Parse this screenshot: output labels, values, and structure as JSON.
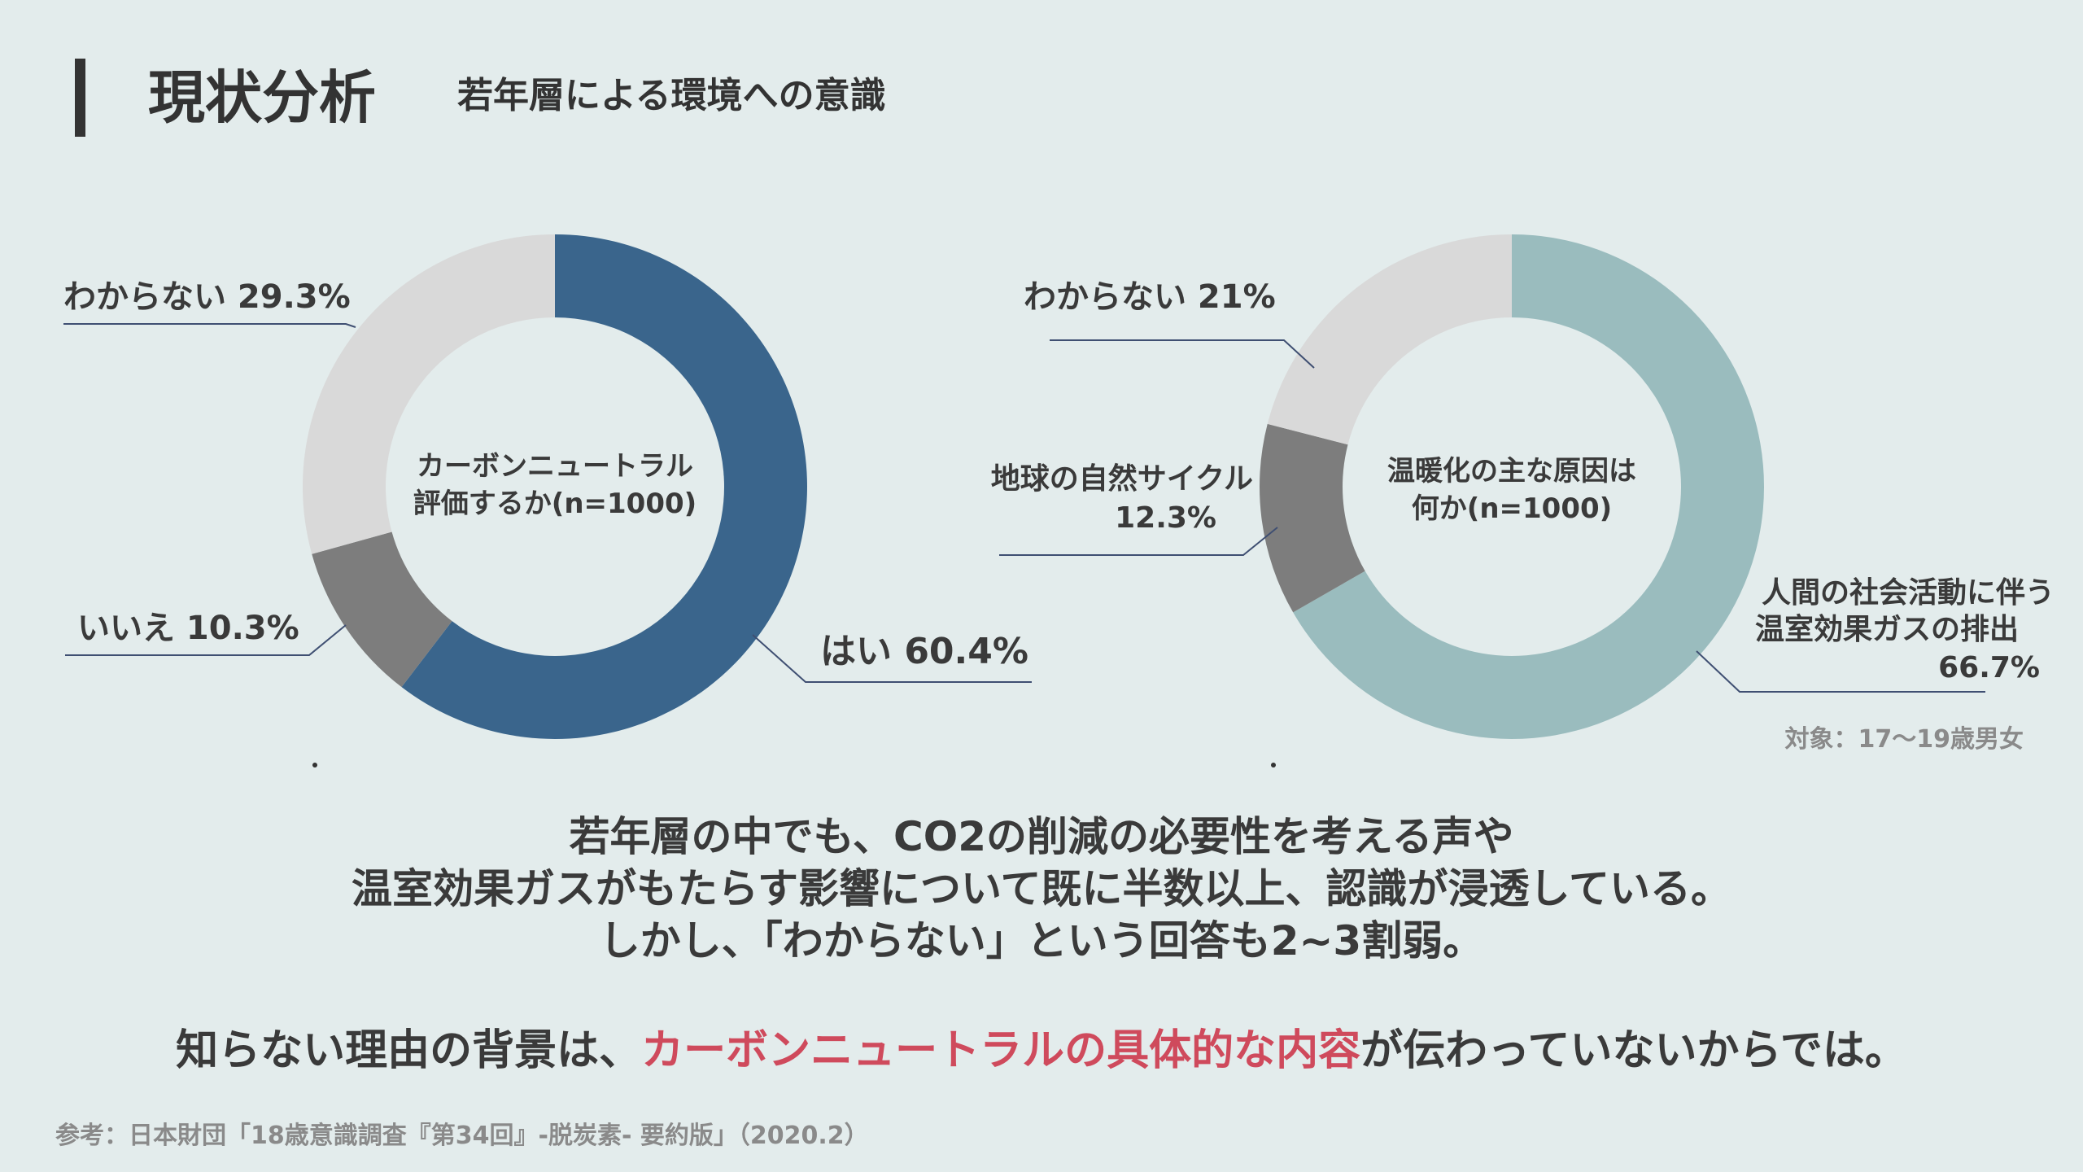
{
  "header": {
    "title": "現状分析",
    "subtitle": "若年層による環境への意識"
  },
  "chart_data": [
    {
      "type": "pie",
      "center_label": [
        "カーボンニュートラル",
        "評価するか(n=1000)"
      ],
      "slices": [
        {
          "label": "はい",
          "value": 60.4,
          "text": "はい 60.4%",
          "color": "#3a658c"
        },
        {
          "label": "いいえ",
          "value": 10.3,
          "text": "いいえ 10.3%",
          "color": "#7d7d7d"
        },
        {
          "label": "わからない",
          "value": 29.3,
          "text": "わからない 29.3%",
          "color": "#d9d9d9"
        }
      ]
    },
    {
      "type": "pie",
      "center_label": [
        "温暖化の主な原因は",
        "何か(n=1000)"
      ],
      "slices": [
        {
          "label": "人間の社会活動に伴う温室効果ガスの排出",
          "value": 66.7,
          "text": [
            "人間の社会活動に伴う",
            "温室効果ガスの排出",
            "66.7%"
          ],
          "color": "#9abcbe"
        },
        {
          "label": "地球の自然サイクル",
          "value": 12.3,
          "text": [
            "地球の自然サイクル",
            "12.3%"
          ],
          "color": "#7d7d7d"
        },
        {
          "label": "わからない",
          "value": 21,
          "text": [
            "わからない 21%"
          ],
          "color": "#d9d9d9"
        }
      ],
      "note": "対象：17〜19歳男女"
    }
  ],
  "summary": {
    "line1": "若年層の中でも、CO2の削減の必要性を考える声や",
    "line2": "温室効果ガスがもたらす影響について既に半数以上、認識が浸透している。",
    "line3": "しかし、「わからない」という回答も2~3割弱。"
  },
  "conclusion": {
    "before": "知らない理由の背景は、",
    "highlight": "カーボンニュートラルの具体的な内容",
    "after": "が伝わっていないからでは。",
    "highlight_color": "#cf4a5c"
  },
  "source": "参考：日本財団「18歳意識調査『第34回』-脱炭素- 要約版」（2020.2）"
}
